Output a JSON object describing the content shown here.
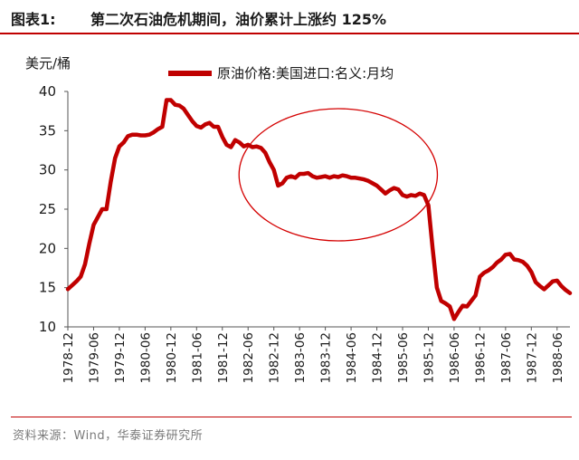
{
  "header": {
    "figure_label": "图表1:",
    "title": "第二次石油危机期间，油价累计上涨约 125%"
  },
  "footer": {
    "source": "资料来源：Wind，华泰证券研究所"
  },
  "colors": {
    "accent": "#c00000",
    "line": "#c00000",
    "ellipse": "#d40000"
  },
  "chart_data": {
    "type": "line",
    "ylabel": "美元/桶",
    "ylim": [
      10,
      40
    ],
    "yticks": [
      "10",
      "15",
      "20",
      "25",
      "30",
      "35",
      "40"
    ],
    "xlabel": "",
    "xticks": [
      "1978-12",
      "1979-06",
      "1979-12",
      "1980-06",
      "1980-12",
      "1981-06",
      "1981-12",
      "1982-06",
      "1982-12",
      "1983-06",
      "1983-12",
      "1984-06",
      "1984-12",
      "1985-06",
      "1985-12",
      "1986-06",
      "1986-12",
      "1987-06",
      "1987-12",
      "1988-06"
    ],
    "grid": false,
    "legend_position": "top",
    "series": [
      {
        "name": "原油价格:美国进口:名义:月均",
        "x": [
          "1978-12",
          "1979-01",
          "1979-02",
          "1979-03",
          "1979-04",
          "1979-05",
          "1979-06",
          "1979-07",
          "1979-08",
          "1979-09",
          "1979-10",
          "1979-11",
          "1979-12",
          "1980-01",
          "1980-02",
          "1980-03",
          "1980-04",
          "1980-05",
          "1980-06",
          "1980-07",
          "1980-08",
          "1980-09",
          "1980-10",
          "1980-11",
          "1980-12",
          "1981-01",
          "1981-02",
          "1981-03",
          "1981-04",
          "1981-05",
          "1981-06",
          "1981-07",
          "1981-08",
          "1981-09",
          "1981-10",
          "1981-11",
          "1981-12",
          "1982-01",
          "1982-02",
          "1982-03",
          "1982-04",
          "1982-05",
          "1982-06",
          "1982-07",
          "1982-08",
          "1982-09",
          "1982-10",
          "1982-11",
          "1982-12",
          "1983-01",
          "1983-02",
          "1983-03",
          "1983-04",
          "1983-05",
          "1983-06",
          "1983-07",
          "1983-08",
          "1983-09",
          "1983-10",
          "1983-11",
          "1983-12",
          "1984-01",
          "1984-02",
          "1984-03",
          "1984-04",
          "1984-05",
          "1984-06",
          "1984-07",
          "1984-08",
          "1984-09",
          "1984-10",
          "1984-11",
          "1984-12",
          "1985-01",
          "1985-02",
          "1985-03",
          "1985-04",
          "1985-05",
          "1985-06",
          "1985-07",
          "1985-08",
          "1985-09",
          "1985-10",
          "1985-11",
          "1985-12",
          "1986-01",
          "1986-02",
          "1986-03",
          "1986-04",
          "1986-05",
          "1986-06",
          "1986-07",
          "1986-08",
          "1986-09",
          "1986-10",
          "1986-11",
          "1986-12",
          "1987-01",
          "1987-02",
          "1987-03",
          "1987-04",
          "1987-05",
          "1987-06",
          "1987-07",
          "1987-08",
          "1987-09",
          "1987-10",
          "1987-11",
          "1987-12",
          "1988-01",
          "1988-02",
          "1988-03",
          "1988-04",
          "1988-05",
          "1988-06",
          "1988-07",
          "1988-08",
          "1988-09"
        ],
        "values": [
          14.8,
          15.3,
          15.8,
          16.4,
          18.0,
          20.6,
          23.0,
          24.0,
          25.0,
          25.0,
          28.5,
          31.5,
          33.0,
          33.5,
          34.3,
          34.5,
          34.5,
          34.4,
          34.4,
          34.5,
          34.8,
          35.2,
          35.5,
          38.9,
          38.9,
          38.3,
          38.2,
          37.8,
          37.0,
          36.2,
          35.6,
          35.4,
          35.8,
          36.0,
          35.5,
          35.5,
          34.2,
          33.2,
          32.9,
          33.8,
          33.5,
          33.0,
          33.2,
          32.9,
          33.0,
          32.8,
          32.2,
          31.0,
          30.0,
          28.0,
          28.3,
          29.0,
          29.2,
          29.0,
          29.5,
          29.5,
          29.6,
          29.2,
          29.0,
          29.1,
          29.2,
          29.0,
          29.2,
          29.1,
          29.3,
          29.2,
          29.0,
          29.0,
          28.9,
          28.8,
          28.6,
          28.3,
          28.0,
          27.5,
          27.0,
          27.4,
          27.7,
          27.5,
          26.8,
          26.6,
          26.8,
          26.7,
          27.0,
          26.8,
          25.5,
          20.0,
          15.0,
          13.3,
          13.0,
          12.6,
          11.0,
          11.9,
          12.7,
          12.6,
          13.3,
          14.0,
          16.4,
          16.9,
          17.2,
          17.6,
          18.2,
          18.6,
          19.2,
          19.3,
          18.6,
          18.5,
          18.3,
          17.8,
          17.0,
          15.7,
          15.2,
          14.8,
          15.3,
          15.8,
          15.9,
          15.2,
          14.7,
          14.3
        ]
      }
    ],
    "annotations": [
      {
        "type": "ellipse",
        "from": "1982-06",
        "to": "1985-12"
      }
    ]
  }
}
